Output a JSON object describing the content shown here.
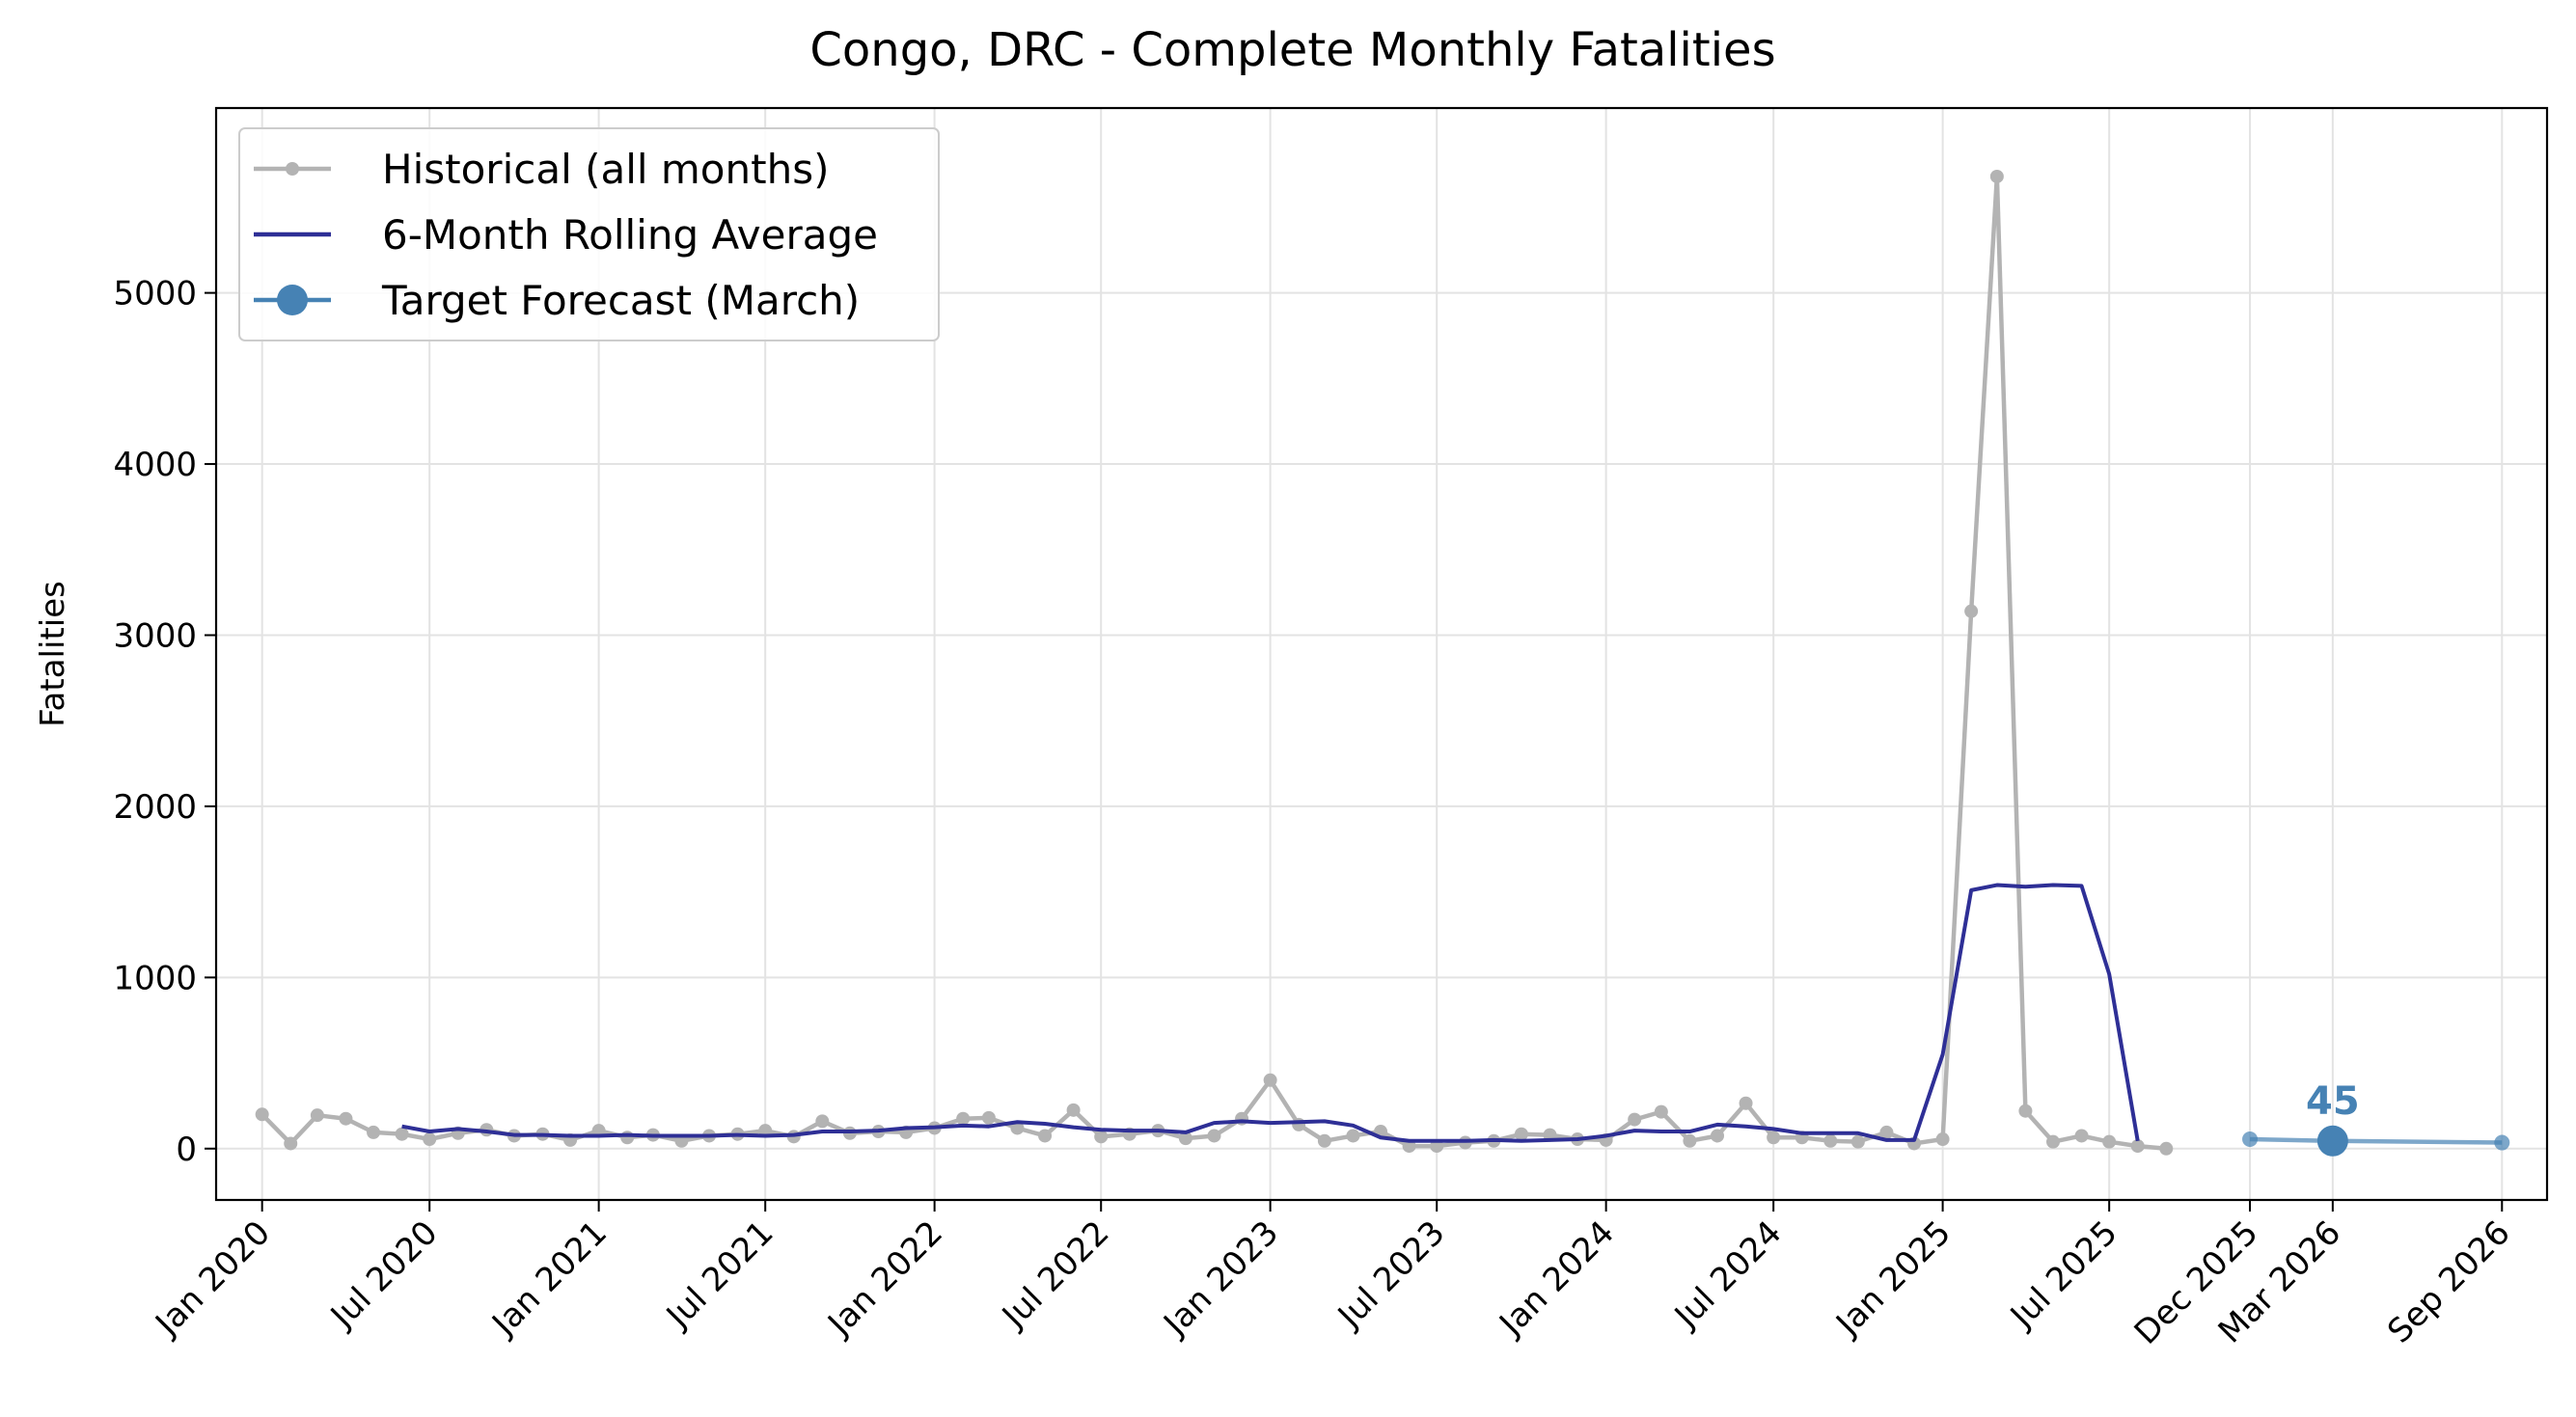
{
  "chart_data": {
    "type": "line",
    "title": "Congo, DRC - Complete Monthly Fatalities",
    "xlabel": "",
    "ylabel": "Fatalities",
    "ylim": [
      -300,
      6080
    ],
    "xlim": [
      "2019-11-12",
      "2026-10-20"
    ],
    "grid": true,
    "legend_position": "top-left",
    "colors": {
      "historical": "#b3b3b3",
      "rolling": "#2e2f96",
      "forecast": "#4682b4",
      "grid": "#e3e3e3"
    },
    "y_ticks": [
      0,
      1000,
      2000,
      3000,
      4000,
      5000
    ],
    "x_ticks": [
      {
        "date": "2020-01-01",
        "label": "Jan 2020"
      },
      {
        "date": "2020-07-01",
        "label": "Jul 2020"
      },
      {
        "date": "2021-01-01",
        "label": "Jan 2021"
      },
      {
        "date": "2021-07-01",
        "label": "Jul 2021"
      },
      {
        "date": "2022-01-01",
        "label": "Jan 2022"
      },
      {
        "date": "2022-07-01",
        "label": "Jul 2022"
      },
      {
        "date": "2023-01-01",
        "label": "Jan 2023"
      },
      {
        "date": "2023-07-01",
        "label": "Jul 2023"
      },
      {
        "date": "2024-01-01",
        "label": "Jan 2024"
      },
      {
        "date": "2024-07-01",
        "label": "Jul 2024"
      },
      {
        "date": "2025-01-01",
        "label": "Jan 2025"
      },
      {
        "date": "2025-07-01",
        "label": "Jul 2025"
      },
      {
        "date": "2025-12-01",
        "label": "Dec 2025"
      },
      {
        "date": "2026-03-01",
        "label": "Mar 2026"
      },
      {
        "date": "2026-09-01",
        "label": "Sep 2026"
      }
    ],
    "series": [
      {
        "name": "Historical (all months)",
        "style": "line-markers",
        "x_start": "2020-01",
        "values": [
          200,
          30,
          195,
          175,
          95,
          85,
          55,
          90,
          110,
          75,
          85,
          50,
          105,
          65,
          80,
          45,
          75,
          85,
          105,
          70,
          160,
          90,
          100,
          95,
          120,
          175,
          180,
          120,
          75,
          225,
          70,
          85,
          105,
          60,
          75,
          175,
          400,
          140,
          45,
          75,
          100,
          15,
          15,
          35,
          45,
          85,
          80,
          55,
          50,
          170,
          215,
          45,
          75,
          265,
          65,
          65,
          45,
          40,
          95,
          30,
          55,
          3140,
          5680,
          220,
          40,
          75,
          40,
          15,
          0
        ]
      },
      {
        "name": "6-Month Rolling Average",
        "style": "line",
        "x_start": "2020-06",
        "values": [
          130,
          100,
          115,
          100,
          80,
          80,
          75,
          75,
          80,
          75,
          75,
          75,
          80,
          75,
          80,
          100,
          100,
          105,
          120,
          125,
          135,
          130,
          155,
          145,
          125,
          110,
          105,
          105,
          95,
          150,
          160,
          150,
          155,
          160,
          135,
          65,
          45,
          45,
          45,
          50,
          45,
          50,
          55,
          75,
          105,
          100,
          100,
          140,
          130,
          115,
          90,
          90,
          90,
          50,
          50,
          550,
          1510,
          1540,
          1530,
          1540,
          1535,
          1020,
          45
        ]
      },
      {
        "name": "Target Forecast (March)",
        "style": "line-markers",
        "points": [
          {
            "x": "2025-12-01",
            "y": 55
          },
          {
            "x": "2026-03-01",
            "y": 45
          },
          {
            "x": "2026-09-01",
            "y": 35
          }
        ]
      }
    ],
    "annotations": [
      {
        "x": "2026-03-01",
        "y": 45,
        "text": "45"
      }
    ]
  }
}
